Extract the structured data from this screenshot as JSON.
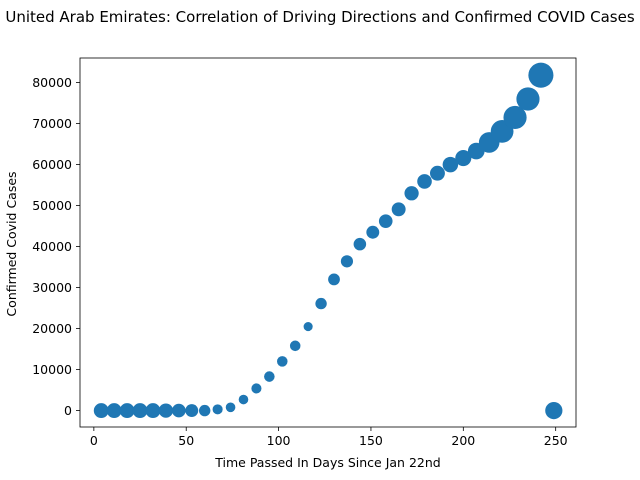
{
  "chart_data": {
    "type": "scatter",
    "title": "United Arab Emirates: Correlation of Driving Directions and Confirmed COVID Cases",
    "xlabel": "Time Passed In Days Since Jan 22nd",
    "ylabel": "Confirmed Covid Cases",
    "xlim": [
      -7.5,
      261
    ],
    "ylim": [
      -4000,
      86000
    ],
    "xticks": [
      0,
      50,
      100,
      150,
      200,
      250
    ],
    "yticks": [
      0,
      10000,
      20000,
      30000,
      40000,
      50000,
      60000,
      70000,
      80000
    ],
    "color": "#1f77b4",
    "grid": false,
    "legend": "none",
    "points": [
      {
        "x": 4,
        "y": 0,
        "size": 120
      },
      {
        "x": 11,
        "y": 0,
        "size": 120
      },
      {
        "x": 18,
        "y": 0,
        "size": 120
      },
      {
        "x": 25,
        "y": 0,
        "size": 120
      },
      {
        "x": 32,
        "y": 0,
        "size": 120
      },
      {
        "x": 39,
        "y": 0,
        "size": 110
      },
      {
        "x": 46,
        "y": 0,
        "size": 100
      },
      {
        "x": 53,
        "y": 0,
        "size": 90
      },
      {
        "x": 60,
        "y": 0,
        "size": 70
      },
      {
        "x": 67,
        "y": 300,
        "size": 55
      },
      {
        "x": 74,
        "y": 800,
        "size": 50
      },
      {
        "x": 81,
        "y": 2700,
        "size": 50
      },
      {
        "x": 88,
        "y": 5400,
        "size": 55
      },
      {
        "x": 95,
        "y": 8300,
        "size": 60
      },
      {
        "x": 102,
        "y": 12000,
        "size": 60
      },
      {
        "x": 109,
        "y": 15800,
        "size": 60
      },
      {
        "x": 116,
        "y": 20500,
        "size": 45
      },
      {
        "x": 123,
        "y": 26100,
        "size": 70
      },
      {
        "x": 130,
        "y": 32000,
        "size": 75
      },
      {
        "x": 137,
        "y": 36400,
        "size": 80
      },
      {
        "x": 144,
        "y": 40600,
        "size": 85
      },
      {
        "x": 151,
        "y": 43500,
        "size": 90
      },
      {
        "x": 158,
        "y": 46200,
        "size": 100
      },
      {
        "x": 165,
        "y": 49100,
        "size": 105
      },
      {
        "x": 172,
        "y": 53000,
        "size": 110
      },
      {
        "x": 179,
        "y": 55900,
        "size": 115
      },
      {
        "x": 186,
        "y": 57900,
        "size": 120
      },
      {
        "x": 193,
        "y": 60000,
        "size": 130
      },
      {
        "x": 200,
        "y": 61600,
        "size": 140
      },
      {
        "x": 207,
        "y": 63300,
        "size": 150
      },
      {
        "x": 214,
        "y": 65400,
        "size": 230
      },
      {
        "x": 221,
        "y": 68100,
        "size": 280
      },
      {
        "x": 228,
        "y": 71500,
        "size": 290
      },
      {
        "x": 235,
        "y": 76000,
        "size": 290
      },
      {
        "x": 242,
        "y": 81800,
        "size": 340
      },
      {
        "x": 249,
        "y": 0,
        "size": 160
      }
    ]
  }
}
